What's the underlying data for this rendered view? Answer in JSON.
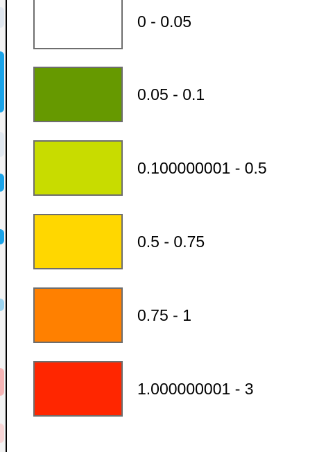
{
  "legend": {
    "items": [
      {
        "label": "0 - 0.05",
        "color": "#ffffff"
      },
      {
        "label": "0.05 - 0.1",
        "color": "#669900"
      },
      {
        "label": "0.100000001 - 0.5",
        "color": "#c8dc00"
      },
      {
        "label": "0.5 - 0.75",
        "color": "#ffd700"
      },
      {
        "label": "0.75 - 1",
        "color": "#ff8000"
      },
      {
        "label": "1.000000001 - 3",
        "color": "#ff2600"
      }
    ]
  }
}
